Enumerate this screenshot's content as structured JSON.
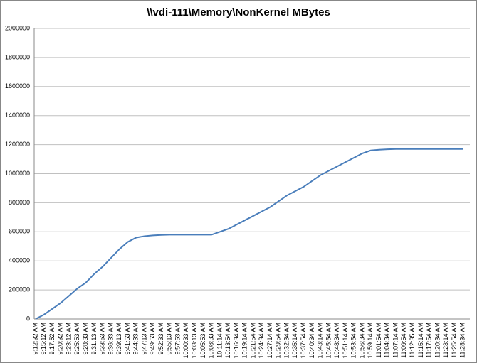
{
  "chart_data": {
    "type": "line",
    "title": "\\\\vdi-111\\Memory\\NonKernel MBytes",
    "categories": [
      "9:12:32 AM",
      "9:15:12 AM",
      "9:17:52 AM",
      "9:20:32 AM",
      "9:23:12 AM",
      "9:25:53 AM",
      "9:28:33 AM",
      "9:31:13 AM",
      "9:33:53 AM",
      "9:36:33 AM",
      "9:39:13 AM",
      "9:41:53 AM",
      "9:44:33 AM",
      "9:47:13 AM",
      "9:49:53 AM",
      "9:52:33 AM",
      "9:55:13 AM",
      "9:57:53 AM",
      "10:00:33 AM",
      "10:03:13 AM",
      "10:05:53 AM",
      "10:08:33 AM",
      "10:11:14 AM",
      "10:13:54 AM",
      "10:16:34 AM",
      "10:19:14 AM",
      "10:21:54 AM",
      "10:24:34 AM",
      "10:27:14 AM",
      "10:29:54 AM",
      "10:32:34 AM",
      "10:35:14 AM",
      "10:37:54 AM",
      "10:40:34 AM",
      "10:43:14 AM",
      "10:45:54 AM",
      "10:48:34 AM",
      "10:51:14 AM",
      "10:53:54 AM",
      "10:56:34 AM",
      "10:59:14 AM",
      "11:01:54 AM",
      "11:04:34 AM",
      "11:07:14 AM",
      "11:09:54 AM",
      "11:12:35 AM",
      "11:15:14 AM",
      "11:17:54 AM",
      "11:20:34 AM",
      "11:23:14 AM",
      "11:25:54 AM",
      "11:28:34 AM"
    ],
    "values": [
      0,
      30000,
      70000,
      110000,
      160000,
      210000,
      250000,
      310000,
      360000,
      420000,
      480000,
      530000,
      560000,
      570000,
      575000,
      578000,
      580000,
      580000,
      580000,
      580000,
      580000,
      580000,
      600000,
      620000,
      650000,
      680000,
      710000,
      740000,
      770000,
      810000,
      850000,
      880000,
      910000,
      950000,
      990000,
      1020000,
      1050000,
      1080000,
      1110000,
      1140000,
      1160000,
      1165000,
      1168000,
      1170000,
      1170000,
      1170000,
      1170000,
      1170000,
      1170000,
      1170000,
      1170000,
      1170000
    ],
    "color": "#4a7ebb",
    "ylim": [
      0,
      2000000
    ],
    "yticks": [
      0,
      200000,
      400000,
      600000,
      800000,
      1000000,
      1200000,
      1400000,
      1600000,
      1800000,
      2000000
    ],
    "grid": true
  }
}
